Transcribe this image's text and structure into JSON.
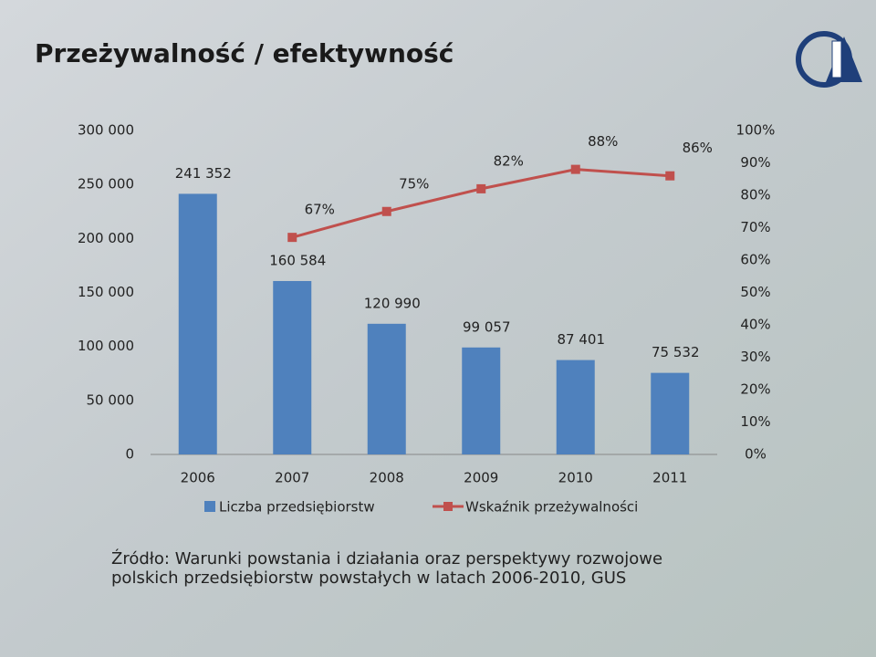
{
  "chart_data": {
    "type": "bar-line",
    "title": "Przeżywalność / efektywność",
    "categories": [
      "2006",
      "2007",
      "2008",
      "2009",
      "2010",
      "2011"
    ],
    "series": [
      {
        "name": "Liczba przedsiębiorstw",
        "type": "bar",
        "color": "#4f81bd",
        "values": [
          241352,
          160584,
          120990,
          99057,
          87401,
          75532
        ],
        "value_labels": [
          "241 352",
          "160 584",
          "120 990",
          "99 057",
          "87 401",
          "75 532"
        ]
      },
      {
        "name": "Wskaźnik przeżywalności",
        "type": "line",
        "axis": "y2",
        "color": "#c0504d",
        "values": [
          null,
          67,
          75,
          82,
          88,
          86
        ],
        "value_labels": [
          null,
          "67%",
          "75%",
          "82%",
          "88%",
          "86%"
        ]
      }
    ],
    "ylim": [
      0,
      300000
    ],
    "yticks": [
      0,
      {
        "value": 50000,
        "label": "50 000"
      },
      {
        "value": 100000,
        "label": "100 000"
      },
      {
        "value": 150000,
        "label": "150 000"
      },
      {
        "value": 200000,
        "label": "200 000"
      },
      {
        "value": 250000,
        "label": "250 000"
      },
      {
        "value": 300000,
        "label": "300 000"
      }
    ],
    "y2lim": [
      0,
      100
    ],
    "y2ticks": [
      {
        "value": 0,
        "label": "0%"
      },
      {
        "value": 10,
        "label": "10%"
      },
      {
        "value": 20,
        "label": "20%"
      },
      {
        "value": 30,
        "label": "30%"
      },
      {
        "value": 40,
        "label": "40%"
      },
      {
        "value": 50,
        "label": "50%"
      },
      {
        "value": 60,
        "label": "60%"
      },
      {
        "value": 70,
        "label": "70%"
      },
      {
        "value": 80,
        "label": "80%"
      },
      {
        "value": 90,
        "label": "90%"
      },
      {
        "value": 100,
        "label": "100%"
      }
    ],
    "grid": false,
    "legend": "bottom",
    "source": [
      "Źródło: Warunki powstania i działania oraz perspektywy rozwojowe",
      "polskich przedsiębiorstw powstałych w latach 2006-2010, GUS"
    ]
  }
}
